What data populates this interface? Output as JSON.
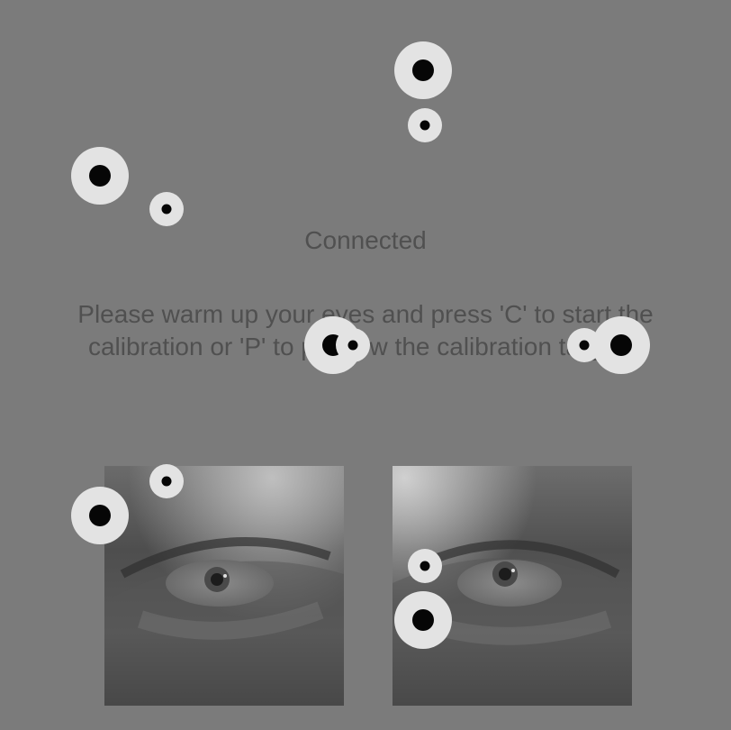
{
  "status": {
    "text": "Connected"
  },
  "instructions": {
    "line1": "Please warm up your eyes and press 'C' to start the",
    "line2": "calibration or 'P' to preview the calibration targets."
  },
  "colors": {
    "background": "#7b7b7b",
    "text": "#505050",
    "target_ring": "#e3e3e3",
    "target_center": "#060606"
  },
  "eye_images": [
    {
      "name": "left eye camera image"
    },
    {
      "name": "right eye camera image"
    }
  ],
  "calibration_targets": [
    {
      "size": "large"
    },
    {
      "size": "small"
    },
    {
      "size": "large"
    },
    {
      "size": "small"
    },
    {
      "size": "large"
    },
    {
      "size": "small"
    },
    {
      "size": "small"
    },
    {
      "size": "large"
    },
    {
      "size": "small"
    },
    {
      "size": "large"
    },
    {
      "size": "small"
    },
    {
      "size": "large"
    }
  ]
}
